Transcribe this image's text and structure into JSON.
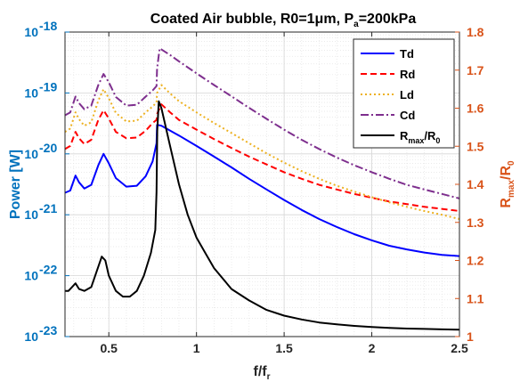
{
  "chart_data": {
    "type": "line",
    "title": "Coated Air bubble, R0=1μm, P",
    "title_sub": "a",
    "title_end": "=200kPa",
    "xlabel": "f/f",
    "xlabel_sub": "r",
    "ylabel_left": "Power [W]",
    "ylabel_right": "R",
    "ylabel_right_sub1": "max",
    "ylabel_right_mid": "/R",
    "ylabel_right_sub2": "0",
    "xlim": [
      0.25,
      2.5
    ],
    "ylim_left": [
      1e-23,
      1e-18
    ],
    "ylim_right": [
      1.0,
      1.8
    ],
    "yscale_left": "log",
    "grid": true,
    "legend_position": "top-right",
    "x_ticks": [
      0.5,
      1,
      1.5,
      2,
      2.5
    ],
    "x_tick_labels": [
      "0.5",
      "1",
      "1.5",
      "2",
      "2.5"
    ],
    "y_left_ticks": [
      1e-23,
      1e-22,
      1e-21,
      1e-20,
      1e-19,
      1e-18
    ],
    "y_left_tick_labels": [
      {
        "base": "10",
        "exp": "-23"
      },
      {
        "base": "10",
        "exp": "-22"
      },
      {
        "base": "10",
        "exp": "-21"
      },
      {
        "base": "10",
        "exp": "-20"
      },
      {
        "base": "10",
        "exp": "-19"
      },
      {
        "base": "10",
        "exp": "-18"
      }
    ],
    "y_right_ticks": [
      1,
      1.1,
      1.2,
      1.3,
      1.4,
      1.5,
      1.6,
      1.7,
      1.8
    ],
    "y_right_tick_labels": [
      "1",
      "1.1",
      "1.2",
      "1.3",
      "1.4",
      "1.5",
      "1.6",
      "1.7",
      "1.8"
    ],
    "series": [
      {
        "key": "Td",
        "name": "Td",
        "color": "#0000ff",
        "dash": "",
        "axis": "left",
        "points": [
          [
            0.25,
            2.3e-21
          ],
          [
            0.28,
            2.5e-21
          ],
          [
            0.31,
            4.4e-21
          ],
          [
            0.33,
            3.4e-21
          ],
          [
            0.36,
            2.7e-21
          ],
          [
            0.4,
            3.1e-21
          ],
          [
            0.44,
            6.5e-21
          ],
          [
            0.47,
            1e-20
          ],
          [
            0.5,
            7e-21
          ],
          [
            0.54,
            4e-21
          ],
          [
            0.6,
            2.9e-21
          ],
          [
            0.66,
            3e-21
          ],
          [
            0.71,
            4.3e-21
          ],
          [
            0.75,
            7.5e-21
          ],
          [
            0.772,
            1.5e-20
          ],
          [
            0.775,
            3e-20
          ],
          [
            0.8,
            2.9e-20
          ],
          [
            0.9,
            2e-20
          ],
          [
            1.0,
            1.35e-20
          ],
          [
            1.1,
            9e-21
          ],
          [
            1.2,
            6e-21
          ],
          [
            1.3,
            3.9e-21
          ],
          [
            1.4,
            2.6e-21
          ],
          [
            1.5,
            1.75e-21
          ],
          [
            1.6,
            1.2e-21
          ],
          [
            1.7,
            8.5e-22
          ],
          [
            1.8,
            6.3e-22
          ],
          [
            1.9,
            4.8e-22
          ],
          [
            2.0,
            3.8e-22
          ],
          [
            2.1,
            3.1e-22
          ],
          [
            2.2,
            2.7e-22
          ],
          [
            2.3,
            2.4e-22
          ],
          [
            2.4,
            2.2e-22
          ],
          [
            2.5,
            2.1e-22
          ]
        ]
      },
      {
        "key": "Rd",
        "name": "Rd",
        "color": "#ff0000",
        "dash": "7 4",
        "axis": "left",
        "points": [
          [
            0.25,
            1.2e-20
          ],
          [
            0.28,
            1.35e-20
          ],
          [
            0.31,
            2.3e-20
          ],
          [
            0.33,
            1.8e-20
          ],
          [
            0.36,
            1.45e-20
          ],
          [
            0.4,
            1.7e-20
          ],
          [
            0.44,
            3.6e-20
          ],
          [
            0.47,
            5.2e-20
          ],
          [
            0.5,
            3.8e-20
          ],
          [
            0.54,
            2.3e-20
          ],
          [
            0.6,
            1.8e-20
          ],
          [
            0.66,
            1.85e-20
          ],
          [
            0.71,
            2.4e-20
          ],
          [
            0.75,
            3.2e-20
          ],
          [
            0.772,
            3.6e-20
          ],
          [
            0.775,
            4.5e-20
          ],
          [
            0.8,
            6.5e-20
          ],
          [
            0.85,
            4.8e-20
          ],
          [
            0.9,
            3.6e-20
          ],
          [
            1.0,
            2.5e-20
          ],
          [
            1.1,
            1.75e-20
          ],
          [
            1.2,
            1.25e-20
          ],
          [
            1.3,
            9e-21
          ],
          [
            1.4,
            6.7e-21
          ],
          [
            1.5,
            5e-21
          ],
          [
            1.6,
            3.9e-21
          ],
          [
            1.7,
            3.1e-21
          ],
          [
            1.8,
            2.6e-21
          ],
          [
            1.9,
            2.2e-21
          ],
          [
            2.0,
            1.9e-21
          ],
          [
            2.1,
            1.65e-21
          ],
          [
            2.2,
            1.5e-21
          ],
          [
            2.3,
            1.35e-21
          ],
          [
            2.4,
            1.25e-21
          ],
          [
            2.5,
            1.15e-21
          ]
        ]
      },
      {
        "key": "Ld",
        "name": "Ld",
        "color": "#edb120",
        "dash": "2 3",
        "axis": "left",
        "points": [
          [
            0.25,
            2.3e-20
          ],
          [
            0.28,
            2.6e-20
          ],
          [
            0.31,
            4.8e-20
          ],
          [
            0.33,
            3.7e-20
          ],
          [
            0.36,
            2.9e-20
          ],
          [
            0.4,
            3.3e-20
          ],
          [
            0.44,
            7.5e-20
          ],
          [
            0.47,
            1.15e-19
          ],
          [
            0.5,
            8.2e-20
          ],
          [
            0.54,
            4.7e-20
          ],
          [
            0.6,
            3.4e-20
          ],
          [
            0.66,
            3.5e-20
          ],
          [
            0.71,
            4.8e-20
          ],
          [
            0.75,
            6e-20
          ],
          [
            0.772,
            7e-20
          ],
          [
            0.775,
            1e-19
          ],
          [
            0.8,
            1.35e-19
          ],
          [
            0.85,
            9.8e-20
          ],
          [
            0.9,
            7.3e-20
          ],
          [
            1.0,
            4.8e-20
          ],
          [
            1.1,
            3.2e-20
          ],
          [
            1.2,
            2.2e-20
          ],
          [
            1.3,
            1.5e-20
          ],
          [
            1.4,
            1.02e-20
          ],
          [
            1.5,
            7.2e-21
          ],
          [
            1.6,
            5.2e-21
          ],
          [
            1.7,
            3.9e-21
          ],
          [
            1.8,
            3e-21
          ],
          [
            1.9,
            2.4e-21
          ],
          [
            2.0,
            1.95e-21
          ],
          [
            2.1,
            1.6e-21
          ],
          [
            2.2,
            1.35e-21
          ],
          [
            2.3,
            1.15e-21
          ],
          [
            2.4,
            1e-21
          ],
          [
            2.5,
            8.5e-22
          ]
        ]
      },
      {
        "key": "Cd",
        "name": "Cd",
        "color": "#7e2f8e",
        "dash": "9 3 2 3",
        "axis": "left",
        "points": [
          [
            0.25,
            4.3e-20
          ],
          [
            0.28,
            4.8e-20
          ],
          [
            0.31,
            8.7e-20
          ],
          [
            0.33,
            6.8e-20
          ],
          [
            0.36,
            5.4e-20
          ],
          [
            0.4,
            6.2e-20
          ],
          [
            0.44,
            1.35e-19
          ],
          [
            0.47,
            2.05e-19
          ],
          [
            0.5,
            1.5e-19
          ],
          [
            0.54,
            8.6e-20
          ],
          [
            0.6,
            6.2e-20
          ],
          [
            0.66,
            6.4e-20
          ],
          [
            0.71,
            8.7e-20
          ],
          [
            0.75,
            1.1e-19
          ],
          [
            0.772,
            1.3e-19
          ],
          [
            0.775,
            2.5e-19
          ],
          [
            0.79,
            5.4e-19
          ],
          [
            0.85,
            4.2e-19
          ],
          [
            0.9,
            3.3e-19
          ],
          [
            1.0,
            2.1e-19
          ],
          [
            1.1,
            1.35e-19
          ],
          [
            1.2,
            8.8e-20
          ],
          [
            1.3,
            5.7e-20
          ],
          [
            1.4,
            3.75e-20
          ],
          [
            1.5,
            2.5e-20
          ],
          [
            1.6,
            1.7e-20
          ],
          [
            1.7,
            1.2e-20
          ],
          [
            1.8,
            8.7e-21
          ],
          [
            1.9,
            6.5e-21
          ],
          [
            2.0,
            5e-21
          ],
          [
            2.1,
            3.9e-21
          ],
          [
            2.2,
            3.1e-21
          ],
          [
            2.3,
            2.6e-21
          ],
          [
            2.4,
            2.2e-21
          ],
          [
            2.5,
            1.85e-21
          ]
        ]
      },
      {
        "key": "Rmax",
        "name": "R",
        "name_sub1": "max",
        "name_mid": "/R",
        "name_sub2": "0",
        "color": "#000000",
        "dash": "",
        "axis": "right",
        "points": [
          [
            0.25,
            1.12
          ],
          [
            0.27,
            1.12
          ],
          [
            0.29,
            1.13
          ],
          [
            0.31,
            1.14
          ],
          [
            0.33,
            1.125
          ],
          [
            0.36,
            1.12
          ],
          [
            0.4,
            1.13
          ],
          [
            0.43,
            1.17
          ],
          [
            0.46,
            1.21
          ],
          [
            0.48,
            1.2
          ],
          [
            0.5,
            1.16
          ],
          [
            0.54,
            1.12
          ],
          [
            0.58,
            1.105
          ],
          [
            0.62,
            1.105
          ],
          [
            0.66,
            1.12
          ],
          [
            0.7,
            1.16
          ],
          [
            0.74,
            1.22
          ],
          [
            0.765,
            1.28
          ],
          [
            0.772,
            1.38
          ],
          [
            0.776,
            1.54
          ],
          [
            0.785,
            1.618
          ],
          [
            0.8,
            1.6
          ],
          [
            0.85,
            1.5
          ],
          [
            0.9,
            1.4
          ],
          [
            0.95,
            1.32
          ],
          [
            1.0,
            1.26
          ],
          [
            1.05,
            1.22
          ],
          [
            1.1,
            1.18
          ],
          [
            1.2,
            1.125
          ],
          [
            1.3,
            1.095
          ],
          [
            1.4,
            1.07
          ],
          [
            1.5,
            1.055
          ],
          [
            1.6,
            1.045
          ],
          [
            1.7,
            1.037
          ],
          [
            1.8,
            1.032
          ],
          [
            1.9,
            1.028
          ],
          [
            2.0,
            1.025
          ],
          [
            2.1,
            1.023
          ],
          [
            2.2,
            1.021
          ],
          [
            2.3,
            1.02
          ],
          [
            2.4,
            1.019
          ],
          [
            2.5,
            1.018
          ]
        ]
      }
    ]
  }
}
